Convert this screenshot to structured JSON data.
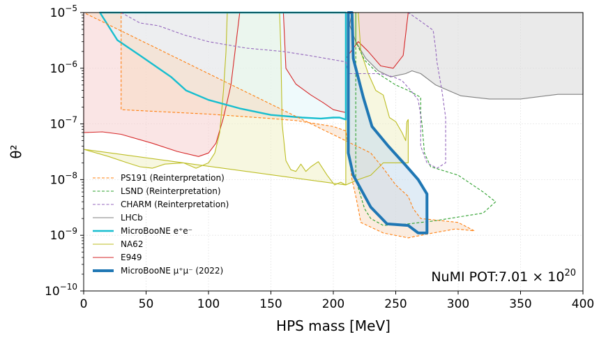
{
  "chart_data": {
    "type": "area",
    "xlabel": "HPS mass [MeV]",
    "ylabel": "θ²",
    "xlim": [
      0,
      400
    ],
    "ylim": [
      1e-10,
      1e-05
    ],
    "yscale": "log",
    "grid": true,
    "legend_position": "lower-left",
    "x_ticks": [
      "0",
      "50",
      "100",
      "150",
      "200",
      "250",
      "300",
      "350",
      "400"
    ],
    "y_ticks": [
      {
        "base": "10",
        "exp": "−5"
      },
      {
        "base": "10",
        "exp": "−6"
      },
      {
        "base": "10",
        "exp": "−7"
      },
      {
        "base": "10",
        "exp": "−8"
      },
      {
        "base": "10",
        "exp": "−9"
      },
      {
        "base": "10",
        "exp": "−10"
      }
    ],
    "annotation": {
      "prefix": "NuMI POT:7.01 × 10",
      "exp": "20"
    },
    "series": [
      {
        "name": "LHCb",
        "color": "#7f7f7f",
        "style": "solid",
        "fill": "#d9d9d9",
        "points": [
          [
            215,
            1e-05
          ],
          [
            213,
            6e-06
          ],
          [
            218,
            3e-06
          ],
          [
            226,
            1.5e-06
          ],
          [
            236,
            9e-07
          ],
          [
            246,
            7e-07
          ],
          [
            258,
            8e-07
          ],
          [
            263,
            9e-07
          ],
          [
            270,
            8e-07
          ],
          [
            282,
            5e-07
          ],
          [
            302,
            3.2e-07
          ],
          [
            325,
            2.8e-07
          ],
          [
            350,
            2.8e-07
          ],
          [
            380,
            3.4e-07
          ],
          [
            400,
            3.4e-07
          ],
          [
            400,
            1e-05
          ]
        ]
      },
      {
        "name": "E949",
        "color": "#d62728",
        "style": "solid",
        "fill": "#f6d0cf",
        "points": [
          [
            0,
            7e-08
          ],
          [
            15,
            7.2e-08
          ],
          [
            30,
            6.5e-08
          ],
          [
            55,
            4.5e-08
          ],
          [
            75,
            3.2e-08
          ],
          [
            92,
            2.6e-08
          ],
          [
            100,
            3e-08
          ],
          [
            106,
            4.5e-08
          ],
          [
            112,
            1.3e-07
          ],
          [
            118,
            5e-07
          ],
          [
            125,
            1e-05
          ],
          [
            160,
            1e-05
          ],
          [
            162,
            1e-06
          ],
          [
            170,
            5.2e-07
          ],
          [
            182,
            3.3e-07
          ],
          [
            192,
            2.4e-07
          ],
          [
            200,
            1.8e-07
          ],
          [
            210,
            1.6e-07
          ],
          [
            210,
            1.5e-06
          ],
          [
            220,
            3e-06
          ],
          [
            228,
            2e-06
          ],
          [
            238,
            1.1e-06
          ],
          [
            248,
            1e-06
          ],
          [
            256,
            1.7e-06
          ],
          [
            260,
            1e-05
          ],
          [
            0,
            1e-05
          ]
        ]
      },
      {
        "name": "NA62",
        "color": "#bcbd22",
        "style": "solid",
        "fill": "#f1f1c6",
        "points": [
          [
            0,
            3.5e-08
          ],
          [
            20,
            2.6e-08
          ],
          [
            35,
            2e-08
          ],
          [
            45,
            1.7e-08
          ],
          [
            55,
            1.6e-08
          ],
          [
            65,
            1.9e-08
          ],
          [
            80,
            2e-08
          ],
          [
            90,
            1.6e-08
          ],
          [
            100,
            2e-08
          ],
          [
            105,
            3e-08
          ],
          [
            109,
            7e-08
          ],
          [
            112,
            4e-07
          ],
          [
            114,
            2e-06
          ],
          [
            115,
            1e-05
          ],
          [
            157,
            1e-05
          ],
          [
            158,
            2e-06
          ],
          [
            159,
            1e-07
          ],
          [
            162,
            2.2e-08
          ],
          [
            166,
            1.5e-08
          ],
          [
            170,
            1.4e-08
          ],
          [
            174,
            1.9e-08
          ],
          [
            178,
            1.4e-08
          ],
          [
            182,
            1.7e-08
          ],
          [
            188,
            2.1e-08
          ],
          [
            195,
            1.2e-08
          ],
          [
            201,
            8e-09
          ],
          [
            206,
            9e-09
          ],
          [
            210,
            8e-09
          ],
          [
            210,
            1e-05
          ],
          [
            220,
            1e-05
          ],
          [
            222,
            2e-06
          ],
          [
            228,
            8e-07
          ],
          [
            234,
            4e-07
          ],
          [
            240,
            3.3e-07
          ],
          [
            245,
            1.3e-07
          ],
          [
            250,
            1.1e-07
          ],
          [
            255,
            7e-08
          ],
          [
            258,
            5e-08
          ],
          [
            259,
            1.1e-07
          ],
          [
            260,
            1.2e-07
          ],
          [
            260,
            2e-08
          ],
          [
            258,
            2e-08
          ],
          [
            250,
            2e-08
          ],
          [
            240,
            2e-08
          ],
          [
            230,
            1.2e-08
          ],
          [
            220,
            1e-08
          ],
          [
            215,
            9e-09
          ],
          [
            210,
            8e-09
          ]
        ]
      },
      {
        "name": "MicroBooNE e⁺e⁻",
        "color": "#17becf",
        "style": "solid",
        "fill": "#e2f6fa",
        "points": [
          [
            13,
            1e-05
          ],
          [
            27,
            3.2e-06
          ],
          [
            45,
            1.7e-06
          ],
          [
            70,
            7e-07
          ],
          [
            82,
            4e-07
          ],
          [
            100,
            2.7e-07
          ],
          [
            125,
            1.9e-07
          ],
          [
            150,
            1.45e-07
          ],
          [
            175,
            1.3e-07
          ],
          [
            190,
            1.25e-07
          ],
          [
            200,
            1.3e-07
          ],
          [
            205,
            1.3e-07
          ],
          [
            210,
            1.2e-07
          ],
          [
            210,
            1e-05
          ]
        ]
      },
      {
        "name": "PS191 (Reinterpretation)",
        "color": "#ff7f0e",
        "style": "dashed",
        "fill": "#f8dcc5",
        "points": [
          [
            0,
            1e-05
          ],
          [
            30,
            1e-05
          ],
          [
            30,
            1.8e-07
          ],
          [
            100,
            1.5e-07
          ],
          [
            150,
            1.25e-07
          ],
          [
            170,
            1.15e-07
          ],
          [
            200,
            9e-08
          ],
          [
            210,
            7.5e-08
          ],
          [
            212,
            3.5e-08
          ],
          [
            215,
            1e-08
          ],
          [
            218,
            5e-09
          ],
          [
            220,
            3e-09
          ],
          [
            222,
            1.7e-09
          ],
          [
            240,
            1.1e-09
          ],
          [
            260,
            9e-10
          ],
          [
            280,
            1.1e-09
          ],
          [
            298,
            1.3e-09
          ],
          [
            313,
            1.2e-09
          ],
          [
            300,
            1.7e-09
          ],
          [
            280,
            1.9e-09
          ],
          [
            270,
            2e-09
          ],
          [
            264,
            3e-09
          ],
          [
            260,
            5e-09
          ],
          [
            250,
            8e-09
          ],
          [
            240,
            1.6e-08
          ],
          [
            230,
            3e-08
          ]
        ]
      },
      {
        "name": "LSND (Reinterpretation)",
        "color": "#2ca02c",
        "style": "dashed",
        "fill": "none",
        "points": [
          [
            218,
            1e-05
          ],
          [
            218,
            3e-06
          ],
          [
            225,
            1.4e-06
          ],
          [
            236,
            8e-07
          ],
          [
            250,
            5e-07
          ],
          [
            260,
            4e-07
          ],
          [
            270,
            3e-07
          ],
          [
            270,
            1.5e-07
          ],
          [
            271,
            1e-07
          ],
          [
            273,
            3e-08
          ],
          [
            278,
            1.7e-08
          ],
          [
            300,
            1.2e-08
          ],
          [
            320,
            6e-09
          ],
          [
            330,
            4e-09
          ],
          [
            320,
            2.5e-09
          ],
          [
            280,
            1.8e-09
          ],
          [
            260,
            1.6e-09
          ],
          [
            240,
            1.5e-09
          ],
          [
            230,
            2e-09
          ],
          [
            225,
            3e-09
          ],
          [
            222,
            5e-09
          ],
          [
            218,
            1e-08
          ]
        ]
      },
      {
        "name": "CHARM (Reinterpretation)",
        "color": "#9467bd",
        "style": "dashed",
        "fill": "none",
        "points": [
          [
            30,
            1e-05
          ],
          [
            45,
            6.5e-06
          ],
          [
            60,
            5.8e-06
          ],
          [
            80,
            4e-06
          ],
          [
            100,
            3e-06
          ],
          [
            130,
            2.3e-06
          ],
          [
            160,
            2e-06
          ],
          [
            180,
            1.7e-06
          ],
          [
            210,
            1.3e-06
          ],
          [
            212,
            8e-07
          ],
          [
            228,
            8e-07
          ],
          [
            238,
            8e-07
          ],
          [
            248,
            7e-07
          ],
          [
            255,
            6e-07
          ],
          [
            262,
            4e-07
          ],
          [
            268,
            2.7e-07
          ],
          [
            270,
            1.4e-07
          ],
          [
            270,
            4e-08
          ],
          [
            275,
            2e-08
          ],
          [
            283,
            1.6e-08
          ],
          [
            290,
            2e-08
          ],
          [
            290,
            1.3e-07
          ],
          [
            287,
            4e-07
          ],
          [
            283,
            1.3e-06
          ],
          [
            282,
            2.2e-06
          ],
          [
            280,
            4.8e-06
          ],
          [
            270,
            7e-06
          ],
          [
            260,
            1e-05
          ]
        ]
      },
      {
        "name": "MicroBooNE μ⁺μ⁻ (2022)",
        "color": "#1f77b4",
        "style": "solid",
        "fill": "#c6dcee",
        "points": [
          [
            212,
            1e-05
          ],
          [
            212,
            3e-08
          ],
          [
            216,
            1.2e-08
          ],
          [
            230,
            3.2e-09
          ],
          [
            243,
            1.6e-09
          ],
          [
            260,
            1.5e-09
          ],
          [
            268,
            1.1e-09
          ],
          [
            275,
            1.1e-09
          ],
          [
            275,
            5.5e-09
          ],
          [
            268,
            1e-08
          ],
          [
            258,
            1.8e-08
          ],
          [
            244,
            4e-08
          ],
          [
            231,
            9e-08
          ],
          [
            224,
            3e-07
          ],
          [
            216,
            1.5e-06
          ],
          [
            215,
            1e-05
          ]
        ]
      }
    ],
    "legend_order": [
      4,
      5,
      6,
      0,
      3,
      2,
      1,
      7
    ]
  }
}
